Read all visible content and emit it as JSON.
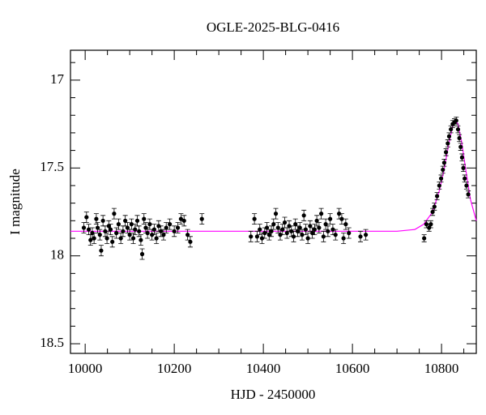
{
  "chart_data": {
    "type": "scatter",
    "title": "OGLE-2025-BLG-0416",
    "xlabel": "HJD - 2450000",
    "ylabel": "I magnitude",
    "xlim": [
      9967,
      10878
    ],
    "ylim": [
      18.555,
      16.83
    ],
    "xticks": [
      10000,
      10200,
      10400,
      10600,
      10800
    ],
    "yticks": [
      17,
      17.5,
      18,
      18.5
    ],
    "xticks_minor": [
      10050,
      10100,
      10150,
      10250,
      10300,
      10350,
      10450,
      10500,
      10550,
      10650,
      10700,
      10750,
      10850
    ],
    "yticks_minor": [
      16.9,
      17.1,
      17.2,
      17.3,
      17.4,
      17.6,
      17.7,
      17.8,
      17.9,
      18.1,
      18.2,
      18.3,
      18.4
    ],
    "series": [
      {
        "color": "#000000",
        "error": 0.03,
        "x": [
          9997,
          10003,
          10008,
          10012,
          10016,
          10020,
          10025,
          10028,
          10033,
          10036,
          10040,
          10045,
          10049,
          10053,
          10057,
          10061,
          10065,
          10070,
          10075,
          10080,
          10085,
          10090,
          10095,
          10100,
          10104,
          10108,
          10112,
          10117,
          10121,
          10125,
          10128,
          10132,
          10136,
          10140,
          10145,
          10150,
          10155,
          10160,
          10165,
          10170,
          10176,
          10182,
          10190,
          10200,
          10208,
          10215,
          10222,
          10230,
          10236,
          10262,
          10372,
          10380,
          10386,
          10392,
          10397,
          10403,
          10408,
          10413,
          10418,
          10423,
          10428,
          10433,
          10438,
          10443,
          10448,
          10453,
          10458,
          10463,
          10468,
          10472,
          10477,
          10482,
          10487,
          10491,
          10495,
          10500,
          10505,
          10510,
          10515,
          10520,
          10525,
          10530,
          10535,
          10540,
          10545,
          10550,
          10556,
          10562,
          10570,
          10576,
          10580,
          10585,
          10592,
          10618,
          10630
        ],
        "values": [
          17.84,
          17.78,
          17.85,
          17.91,
          17.87,
          17.9,
          17.79,
          17.84,
          17.88,
          17.97,
          17.8,
          17.86,
          17.9,
          17.83,
          17.85,
          17.92,
          17.76,
          17.87,
          17.82,
          17.9,
          17.86,
          17.8,
          17.84,
          17.88,
          17.82,
          17.9,
          17.85,
          17.8,
          17.86,
          17.91,
          17.99,
          17.79,
          17.84,
          17.87,
          17.82,
          17.88,
          17.85,
          17.9,
          17.83,
          17.86,
          17.88,
          17.84,
          17.82,
          17.86,
          17.84,
          17.79,
          17.8,
          17.88,
          17.92,
          17.79,
          17.89,
          17.79,
          17.89,
          17.85,
          17.9,
          17.87,
          17.84,
          17.88,
          17.86,
          17.82,
          17.76,
          17.84,
          17.88,
          17.85,
          17.81,
          17.87,
          17.83,
          17.86,
          17.89,
          17.82,
          17.86,
          17.84,
          17.88,
          17.77,
          17.85,
          17.9,
          17.83,
          17.87,
          17.85,
          17.8,
          17.84,
          17.76,
          17.89,
          17.82,
          17.86,
          17.79,
          17.85,
          17.88,
          17.76,
          17.79,
          17.9,
          17.82,
          17.87,
          17.89,
          17.88
        ]
      },
      {
        "color": "#000000",
        "error": 0.02,
        "x": [
          10761,
          10766,
          10772,
          10776,
          10780,
          10784,
          10790,
          10795,
          10799,
          10803,
          10806,
          10810,
          10814,
          10817,
          10821,
          10825,
          10829,
          10833,
          10837,
          10840,
          10843,
          10846,
          10849,
          10852,
          10856,
          10860
        ],
        "values": [
          17.9,
          17.82,
          17.84,
          17.82,
          17.75,
          17.72,
          17.66,
          17.6,
          17.56,
          17.51,
          17.47,
          17.41,
          17.36,
          17.32,
          17.28,
          17.25,
          17.24,
          17.23,
          17.28,
          17.33,
          17.38,
          17.44,
          17.5,
          17.56,
          17.6,
          17.65
        ]
      }
    ],
    "model": {
      "color": "#ff00ff",
      "x": [
        9967,
        10700,
        10740,
        10760,
        10780,
        10795,
        10805,
        10815,
        10825,
        10831,
        10837,
        10845,
        10855,
        10865,
        10878
      ],
      "values": [
        17.86,
        17.86,
        17.85,
        17.82,
        17.75,
        17.63,
        17.52,
        17.38,
        17.26,
        17.23,
        17.25,
        17.35,
        17.52,
        17.68,
        17.8
      ]
    }
  }
}
